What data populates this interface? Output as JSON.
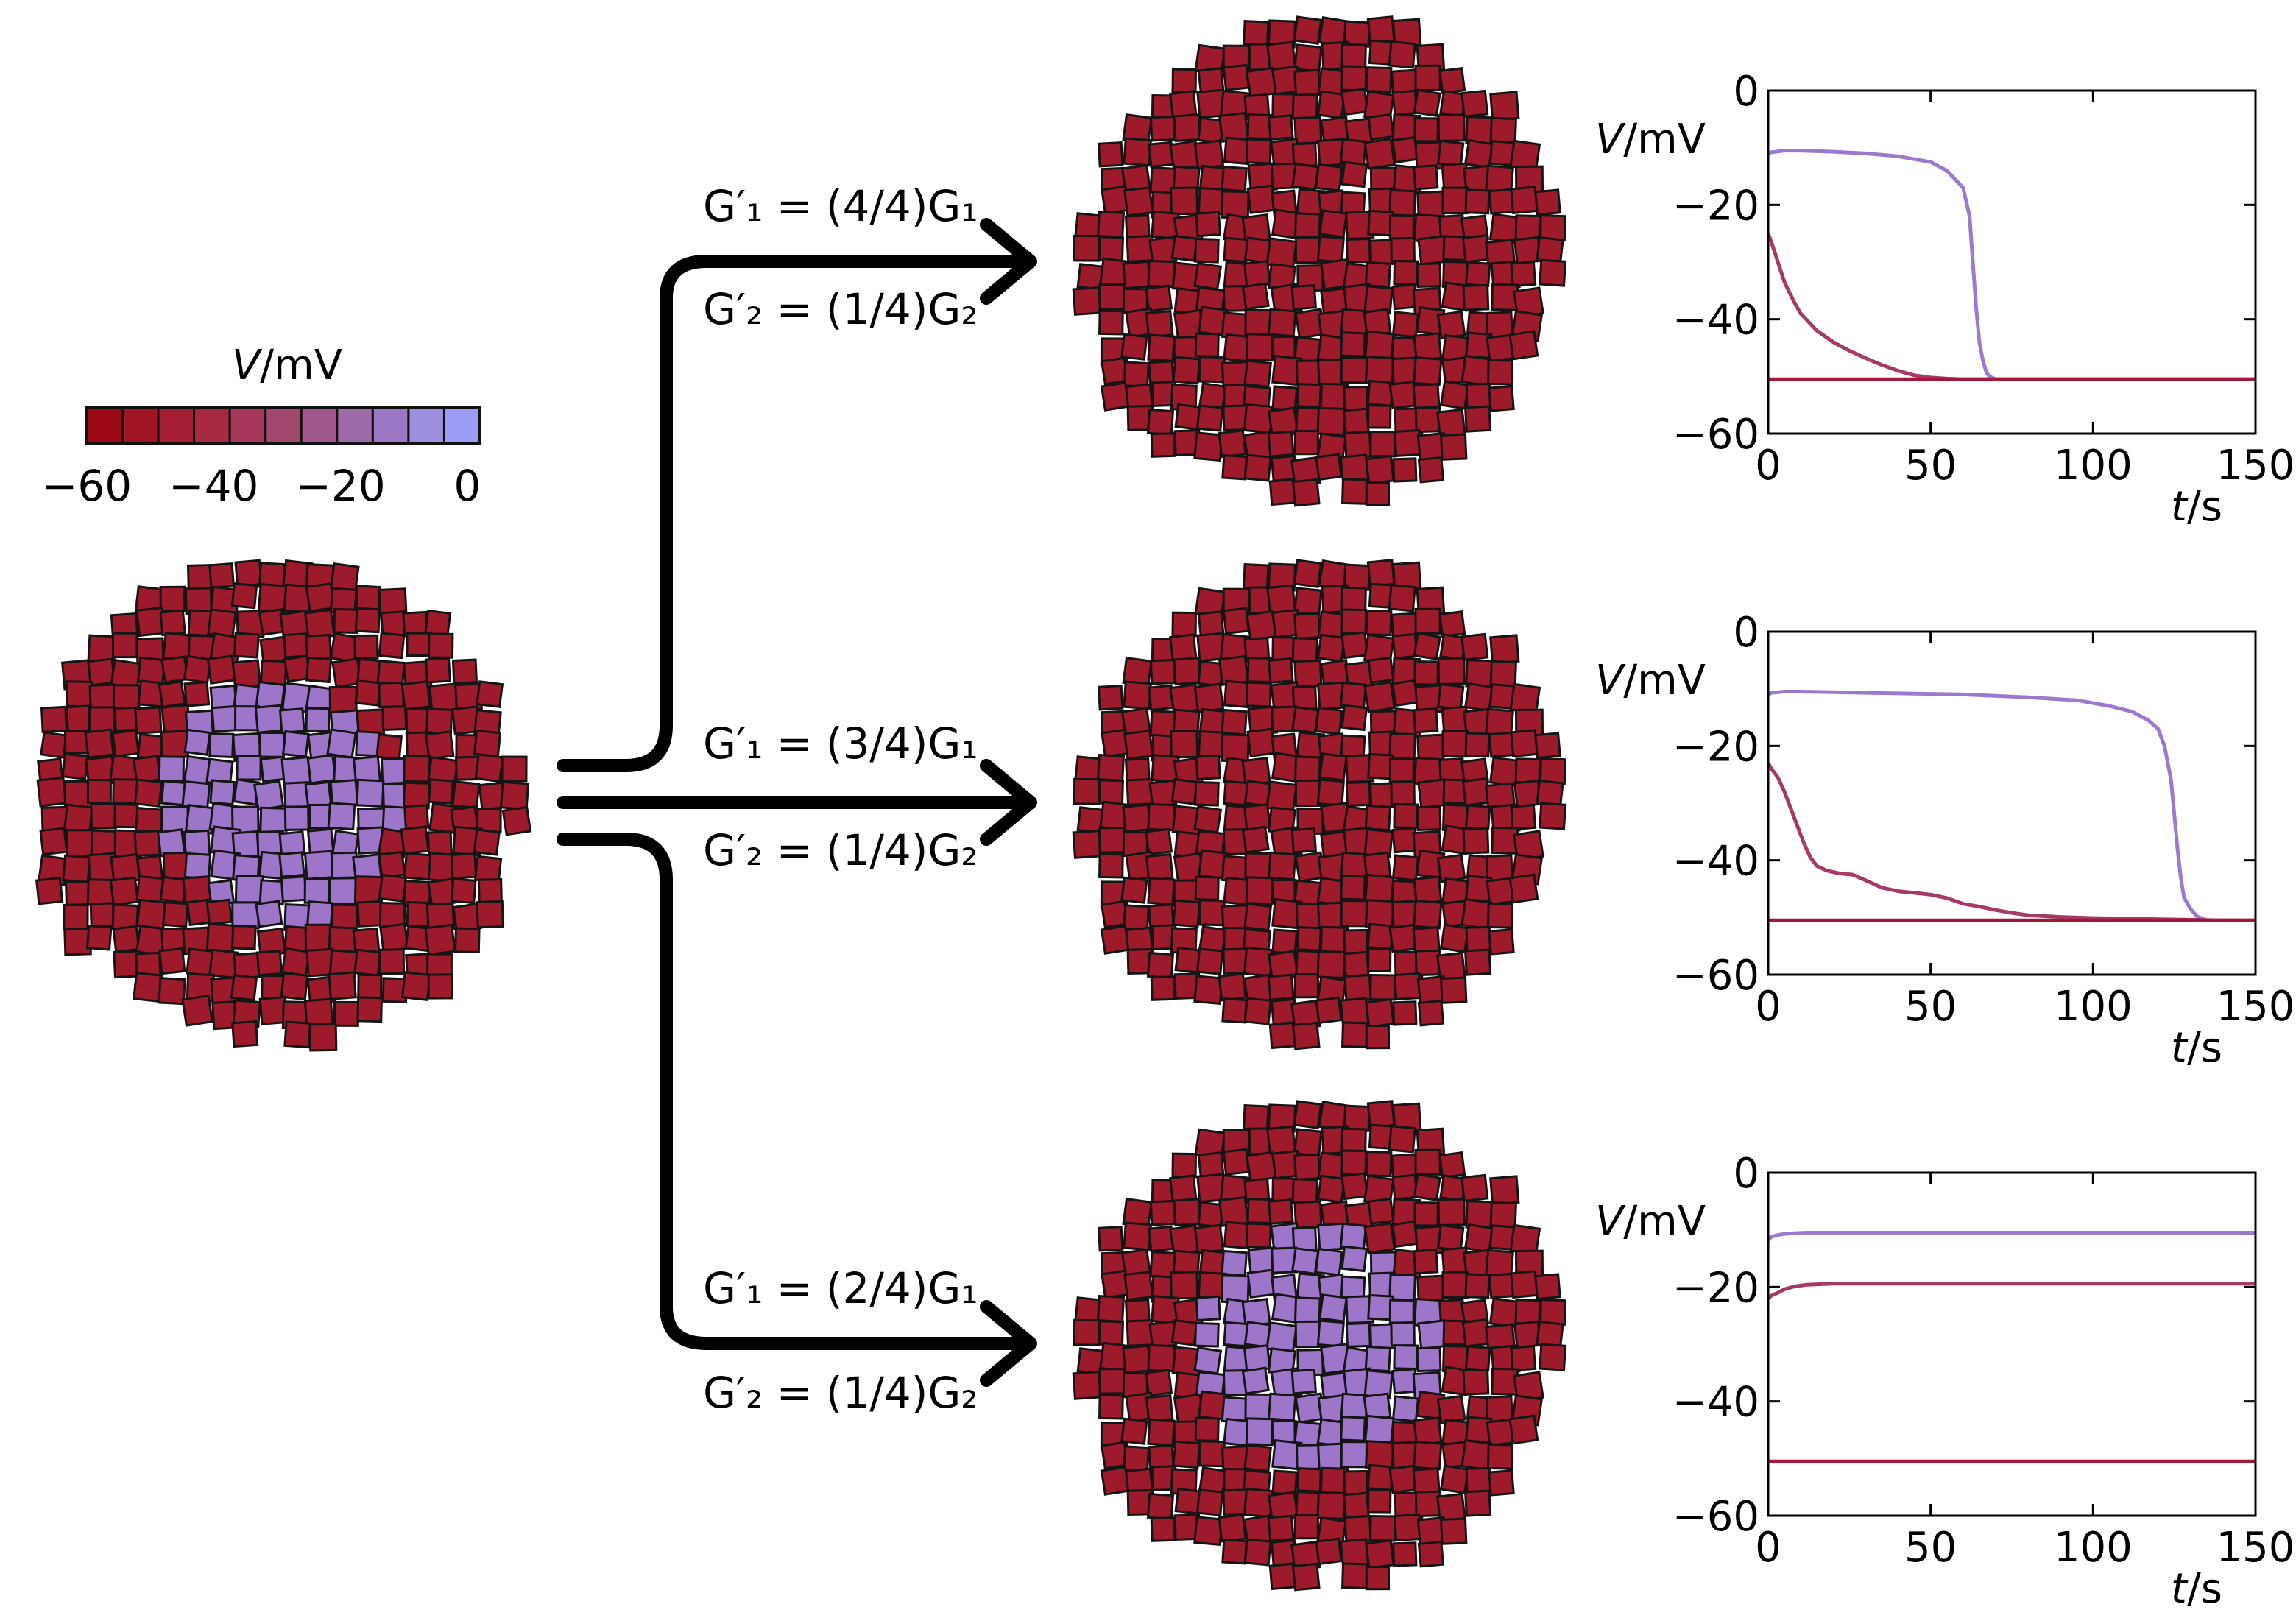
{
  "colorbar": {
    "label_var": "V",
    "label_unit": "/mV",
    "ticks": [
      "−60",
      "−40",
      "−20",
      "0"
    ],
    "tick_values": [
      -60,
      -40,
      -20,
      0
    ],
    "range": [
      -60,
      2
    ],
    "swatches": [
      "#9b0a14",
      "#a11424",
      "#a31e31",
      "#a52a40",
      "#a4375a",
      "#a2486f",
      "#a0588c",
      "#9e6aa8",
      "#9c78c4",
      "#9e8ee0",
      "#9d9df8"
    ]
  },
  "tissues": {
    "border_color": "#151515",
    "depolarized_color": "#9e76c9",
    "polarized_color": "#9d1a2b",
    "initial": {
      "depolarized_fraction": 0.5
    },
    "results": [
      {
        "depolarized_fraction": 0
      },
      {
        "depolarized_fraction": 0
      },
      {
        "depolarized_fraction": 0.5
      }
    ]
  },
  "arrows": [
    {
      "g1_lhs": "G′₁ = (4/4)G₁",
      "g2_lhs": "G′₂ = (1/4)G₂"
    },
    {
      "g1_lhs": "G′₁ = (3/4)G₁",
      "g2_lhs": "G′₂ = (1/4)G₂"
    },
    {
      "g1_lhs": "G′₁ = (2/4)G₁",
      "g2_lhs": "G′₂ = (1/4)G₂"
    }
  ],
  "chart_data": [
    {
      "type": "line",
      "ylabel_var": "V",
      "ylabel_unit": "/mV",
      "xlabel_var": "t",
      "xlabel_unit": "/s",
      "xlim": [
        0,
        150
      ],
      "ylim": [
        -60,
        0
      ],
      "xticks": [
        0,
        50,
        100,
        150
      ],
      "yticks": [
        0,
        -20,
        -40,
        -60
      ],
      "xtick_labels": [
        "0",
        "50",
        "100",
        "150"
      ],
      "ytick_labels": [
        "0",
        "−20",
        "−40",
        "−60"
      ],
      "series": [
        {
          "color": "#9d78cf",
          "x": [
            0,
            1,
            5,
            10,
            20,
            30,
            40,
            50,
            55,
            60,
            62,
            63,
            64,
            65,
            66,
            67,
            68,
            70,
            75,
            100,
            150
          ],
          "y": [
            -11,
            -10.8,
            -10.5,
            -10.5,
            -10.7,
            -11,
            -11.5,
            -12.5,
            -14,
            -17,
            -22,
            -30,
            -38,
            -44,
            -47,
            -49,
            -50,
            -50.5,
            -50.5,
            -50.5,
            -50.5
          ]
        },
        {
          "color": "#a53a66",
          "x": [
            0,
            1,
            3,
            5,
            8,
            10,
            15,
            20,
            25,
            30,
            35,
            40,
            45,
            50,
            55,
            60,
            70,
            100,
            150
          ],
          "y": [
            -25,
            -26.5,
            -30,
            -33.5,
            -37,
            -39,
            -42,
            -44,
            -45.5,
            -46.8,
            -48,
            -49,
            -49.8,
            -50.2,
            -50.4,
            -50.5,
            -50.5,
            -50.5,
            -50.5
          ]
        },
        {
          "color": "#a3193a",
          "x": [
            0,
            150
          ],
          "y": [
            -50.5,
            -50.5
          ]
        }
      ]
    },
    {
      "type": "line",
      "ylabel_var": "V",
      "ylabel_unit": "/mV",
      "xlabel_var": "t",
      "xlabel_unit": "/s",
      "xlim": [
        0,
        150
      ],
      "ylim": [
        -60,
        0
      ],
      "xticks": [
        0,
        50,
        100,
        150
      ],
      "yticks": [
        0,
        -20,
        -40,
        -60
      ],
      "xtick_labels": [
        "0",
        "50",
        "100",
        "150"
      ],
      "ytick_labels": [
        "0",
        "−20",
        "−40",
        "−60"
      ],
      "series": [
        {
          "color": "#9d78cf",
          "x": [
            0,
            1,
            5,
            10,
            20,
            40,
            60,
            80,
            95,
            105,
            112,
            117,
            120,
            122,
            124,
            125,
            126,
            127,
            128,
            130,
            132,
            135,
            140,
            150
          ],
          "y": [
            -11,
            -10.7,
            -10.5,
            -10.5,
            -10.6,
            -10.8,
            -11,
            -11.5,
            -12,
            -13,
            -14,
            -15.5,
            -17,
            -20,
            -26,
            -32,
            -38,
            -43,
            -46.5,
            -48.5,
            -49.8,
            -50.5,
            -50.5,
            -50.5
          ]
        },
        {
          "color": "#a53a66",
          "x": [
            0,
            1,
            3,
            5,
            7,
            9,
            11,
            13,
            15,
            18,
            22,
            26,
            30,
            35,
            40,
            45,
            50,
            55,
            60,
            65,
            70,
            75,
            80,
            90,
            100,
            110,
            120,
            130,
            140,
            150
          ],
          "y": [
            -23,
            -24,
            -25.5,
            -28,
            -31,
            -34,
            -37,
            -39.5,
            -41,
            -41.8,
            -42.3,
            -42.5,
            -43.5,
            -44.8,
            -45.4,
            -45.7,
            -46,
            -46.6,
            -47.6,
            -48.1,
            -48.7,
            -49.2,
            -49.6,
            -49.9,
            -50.1,
            -50.2,
            -50.3,
            -50.4,
            -50.5,
            -50.5
          ]
        },
        {
          "color": "#a3193a",
          "x": [
            0,
            150
          ],
          "y": [
            -50.5,
            -50.5
          ]
        }
      ]
    },
    {
      "type": "line",
      "ylabel_var": "V",
      "ylabel_unit": "/mV",
      "xlabel_var": "t",
      "xlabel_unit": "/s",
      "xlim": [
        0,
        150
      ],
      "ylim": [
        -60,
        0
      ],
      "xticks": [
        0,
        50,
        100,
        150
      ],
      "yticks": [
        0,
        -20,
        -40,
        -60
      ],
      "xtick_labels": [
        "0",
        "50",
        "100",
        "150"
      ],
      "ytick_labels": [
        "0",
        "−20",
        "−40",
        "−60"
      ],
      "series": [
        {
          "color": "#9d78cf",
          "x": [
            0,
            1,
            3,
            5,
            8,
            12,
            20,
            40,
            80,
            120,
            150
          ],
          "y": [
            -11.8,
            -11.2,
            -10.9,
            -10.7,
            -10.6,
            -10.5,
            -10.5,
            -10.5,
            -10.5,
            -10.5,
            -10.5
          ]
        },
        {
          "color": "#a53a66",
          "x": [
            0,
            1,
            3,
            5,
            8,
            12,
            16,
            20,
            30,
            60,
            100,
            150
          ],
          "y": [
            -22,
            -21.5,
            -21,
            -20.4,
            -19.9,
            -19.6,
            -19.5,
            -19.4,
            -19.4,
            -19.4,
            -19.4,
            -19.4
          ]
        },
        {
          "color": "#a3193a",
          "x": [
            0,
            150
          ],
          "y": [
            -50.5,
            -50.5
          ]
        }
      ]
    }
  ]
}
